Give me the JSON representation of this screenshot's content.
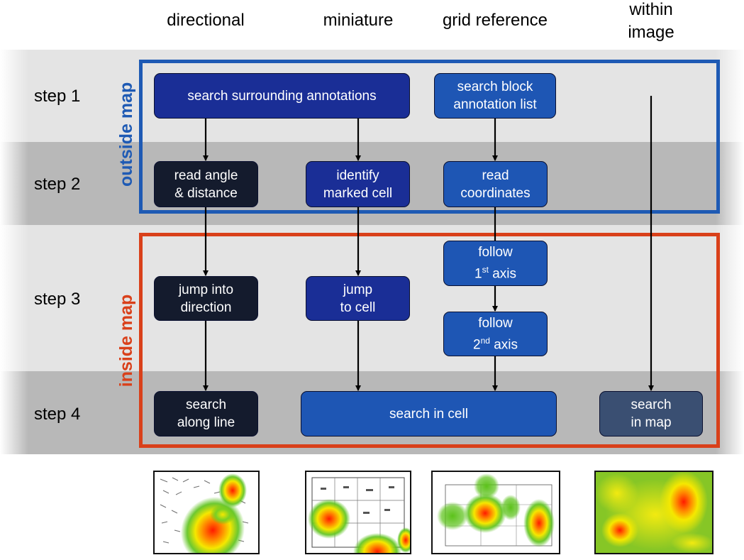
{
  "columns": {
    "directional": "directional",
    "miniature": "miniature",
    "grid_reference": "grid reference",
    "within_image_line1": "within",
    "within_image_line2": "image"
  },
  "steps": {
    "step1": "step 1",
    "step2": "step 2",
    "step3": "step 3",
    "step4": "step 4"
  },
  "regions": {
    "outside_map": "outside map",
    "inside_map": "inside map"
  },
  "colors": {
    "outside_frame": "#1e5ab4",
    "inside_frame": "#d9401a",
    "black_box": "#141b2d",
    "navy_box": "#1a2e96",
    "blue_box": "#1e56b4",
    "slate_box": "#3a4f72"
  },
  "boxes": {
    "search_surrounding": "search surrounding annotations",
    "search_block_l1": "search block",
    "search_block_l2": "annotation list",
    "read_angle_l1": "read angle",
    "read_angle_l2": "& distance",
    "identify_l1": "identify",
    "identify_l2": "marked cell",
    "read_coords_l1": "read",
    "read_coords_l2": "coordinates",
    "follow1_l1": "follow",
    "follow1_num": "1",
    "follow1_sup": "st",
    "follow1_rest": " axis",
    "follow2_l1": "follow",
    "follow2_num": "2",
    "follow2_sup": "nd",
    "follow2_rest": " axis",
    "jump_dir_l1": "jump into",
    "jump_dir_l2": "direction",
    "jump_cell_l1": "jump",
    "jump_cell_l2": "to cell",
    "search_line_l1": "search",
    "search_line_l2": "along line",
    "search_cell": "search in cell",
    "search_map_l1": "search",
    "search_map_l2": "in map"
  }
}
